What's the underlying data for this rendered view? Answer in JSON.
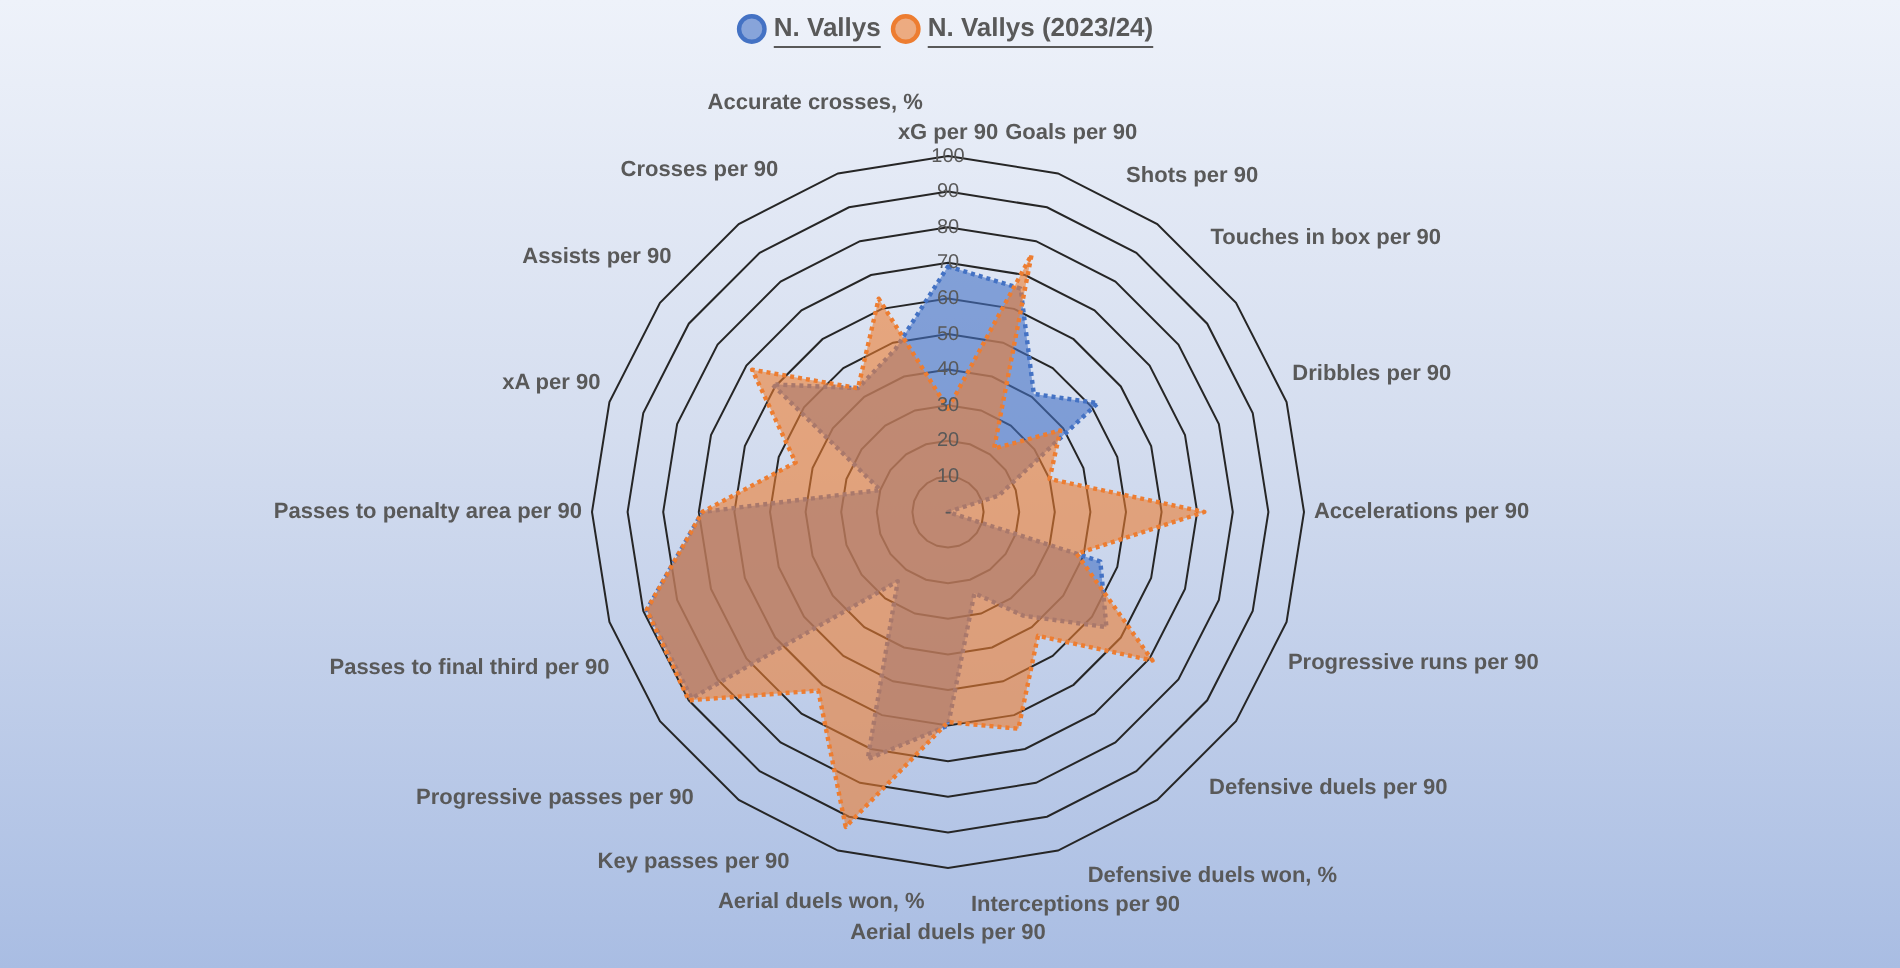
{
  "chart_data": {
    "type": "radar",
    "categories": [
      "xG per 90",
      "Goals per 90",
      "Shots per 90",
      "Touches in box per 90",
      "Dribbles per 90",
      "Accelerations per 90",
      "Progressive runs per 90",
      "Defensive duels per 90",
      "Defensive duels won, %",
      "Interceptions per 90",
      "Aerial duels per 90",
      "Aerial duels won, %",
      "Key passes per 90",
      "Progressive passes per 90",
      "Passes to final third per 90",
      "Passes to penalty area per 90",
      "xA per 90",
      "Assists per 90",
      "Crosses per 90",
      "Accurate crosses, %"
    ],
    "series": [
      {
        "name": "N. Vallys",
        "color": "#4472c4",
        "values": [
          69,
          66,
          41,
          52,
          15,
          0,
          45,
          55,
          36,
          24,
          60,
          73,
          24,
          89,
          89,
          69,
          20,
          61,
          43,
          48
        ]
      },
      {
        "name": "N. Vallys (2023/24)",
        "color": "#ed7d31",
        "values": [
          29,
          76,
          22,
          39,
          30,
          72,
          38,
          71,
          43,
          64,
          59,
          93,
          62,
          90,
          89,
          69,
          45,
          68,
          43,
          63
        ]
      }
    ],
    "ylim": [
      0,
      100
    ],
    "yticks": [
      {
        "value": 0,
        "label": "-"
      },
      10,
      20,
      30,
      40,
      50,
      60,
      70,
      80,
      90,
      100
    ],
    "grid": true,
    "legend": "top",
    "line_style": "dotted"
  }
}
